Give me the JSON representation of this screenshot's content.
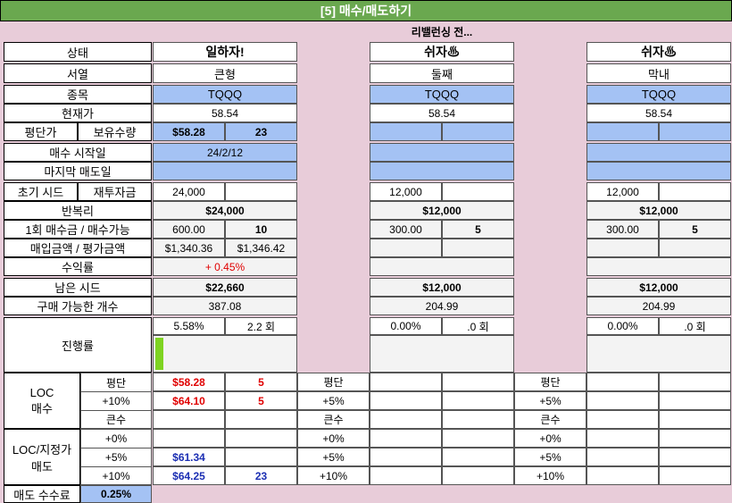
{
  "title": "[5] 매수/매도하기",
  "subtitle": "리밸런싱 전...",
  "labels": {
    "status": "상태",
    "order": "서열",
    "ticker": "종목",
    "price": "현재가",
    "avg": "평단가",
    "holdings": "보유수량",
    "start_date": "매수 시작일",
    "last_sell": "마지막 매도일",
    "initial_seed": "초기 시드",
    "reinvest": "재투자금",
    "compound": "반복리",
    "one_buy": "1회 매수금 / 매수가능",
    "buy_eval": "매입금액 / 평가금액",
    "profit": "수익률",
    "remaining_seed": "남은 시드",
    "buyable": "구매 가능한 개수",
    "progress": "진행률",
    "loc_buy": "LOC\n매수",
    "loc_sell": "LOC/지정가\n매도",
    "sell_fee": "매도 수수료",
    "sell_fee_value": "0.25%"
  },
  "accounts": [
    {
      "status": "일하자!",
      "order": "큰형",
      "ticker": "TQQQ",
      "price": "58.54",
      "avg": "$58.28",
      "qty": "23",
      "start_date": "24/2/12",
      "last_sell": "",
      "seed": "24,000",
      "reinvest": "",
      "compound": "$24,000",
      "one_buy": "600.00",
      "one_buy_count": "10",
      "buy_amount": "$1,340.36",
      "eval_amount": "$1,346.42",
      "profit": "+ 0.45%",
      "remaining": "$22,660",
      "buyable": "387.08",
      "progress_pct": "5.58%",
      "progress_rounds": "2.2 회",
      "progress_fraction": 0.0558,
      "loc_buy": [
        {
          "label": "평단",
          "price": "$58.28",
          "qty": "5"
        },
        {
          "label": "+10%",
          "price": "$64.10",
          "qty": "5"
        },
        {
          "label": "큰수",
          "price": "",
          "qty": ""
        }
      ],
      "loc_sell": [
        {
          "label": "+0%",
          "price": "",
          "qty": ""
        },
        {
          "label": "+5%",
          "price": "$61.34",
          "qty": ""
        },
        {
          "label": "+10%",
          "price": "$64.25",
          "qty": "23"
        }
      ]
    },
    {
      "status": "쉬자♨",
      "order": "둘째",
      "ticker": "TQQQ",
      "price": "58.54",
      "avg": "",
      "qty": "",
      "start_date": "",
      "last_sell": "",
      "seed": "12,000",
      "reinvest": "",
      "compound": "$12,000",
      "one_buy": "300.00",
      "one_buy_count": "5",
      "buy_amount": "",
      "eval_amount": "",
      "profit": "",
      "remaining": "$12,000",
      "buyable": "204.99",
      "progress_pct": "0.00%",
      "progress_rounds": ".0 회",
      "progress_fraction": 0,
      "loc_buy": [
        {
          "label": "평단",
          "price": "",
          "qty": ""
        },
        {
          "label": "+5%",
          "price": "",
          "qty": ""
        },
        {
          "label": "큰수",
          "price": "",
          "qty": ""
        }
      ],
      "loc_sell": [
        {
          "label": "+0%",
          "price": "",
          "qty": ""
        },
        {
          "label": "+5%",
          "price": "",
          "qty": ""
        },
        {
          "label": "+10%",
          "price": "",
          "qty": ""
        }
      ]
    },
    {
      "status": "쉬자♨",
      "order": "막내",
      "ticker": "TQQQ",
      "price": "58.54",
      "avg": "",
      "qty": "",
      "start_date": "",
      "last_sell": "",
      "seed": "12,000",
      "reinvest": "",
      "compound": "$12,000",
      "one_buy": "300.00",
      "one_buy_count": "5",
      "buy_amount": "",
      "eval_amount": "",
      "profit": "",
      "remaining": "$12,000",
      "buyable": "204.99",
      "progress_pct": "0.00%",
      "progress_rounds": ".0 회",
      "progress_fraction": 0,
      "loc_buy": [
        {
          "label": "평단",
          "price": "",
          "qty": ""
        },
        {
          "label": "+5%",
          "price": "",
          "qty": ""
        },
        {
          "label": "큰수",
          "price": "",
          "qty": ""
        }
      ],
      "loc_sell": [
        {
          "label": "+0%",
          "price": "",
          "qty": ""
        },
        {
          "label": "+5%",
          "price": "",
          "qty": ""
        },
        {
          "label": "+10%",
          "price": "",
          "qty": ""
        }
      ]
    }
  ],
  "colors": {
    "title_bg": "#6aa84f",
    "blue_cell": "#a4c2f4",
    "pink_bg": "#e8ccd9",
    "progress_bar": "#7ed321",
    "profit_red": "#e00000",
    "sell_blue": "#1c2fb3"
  }
}
